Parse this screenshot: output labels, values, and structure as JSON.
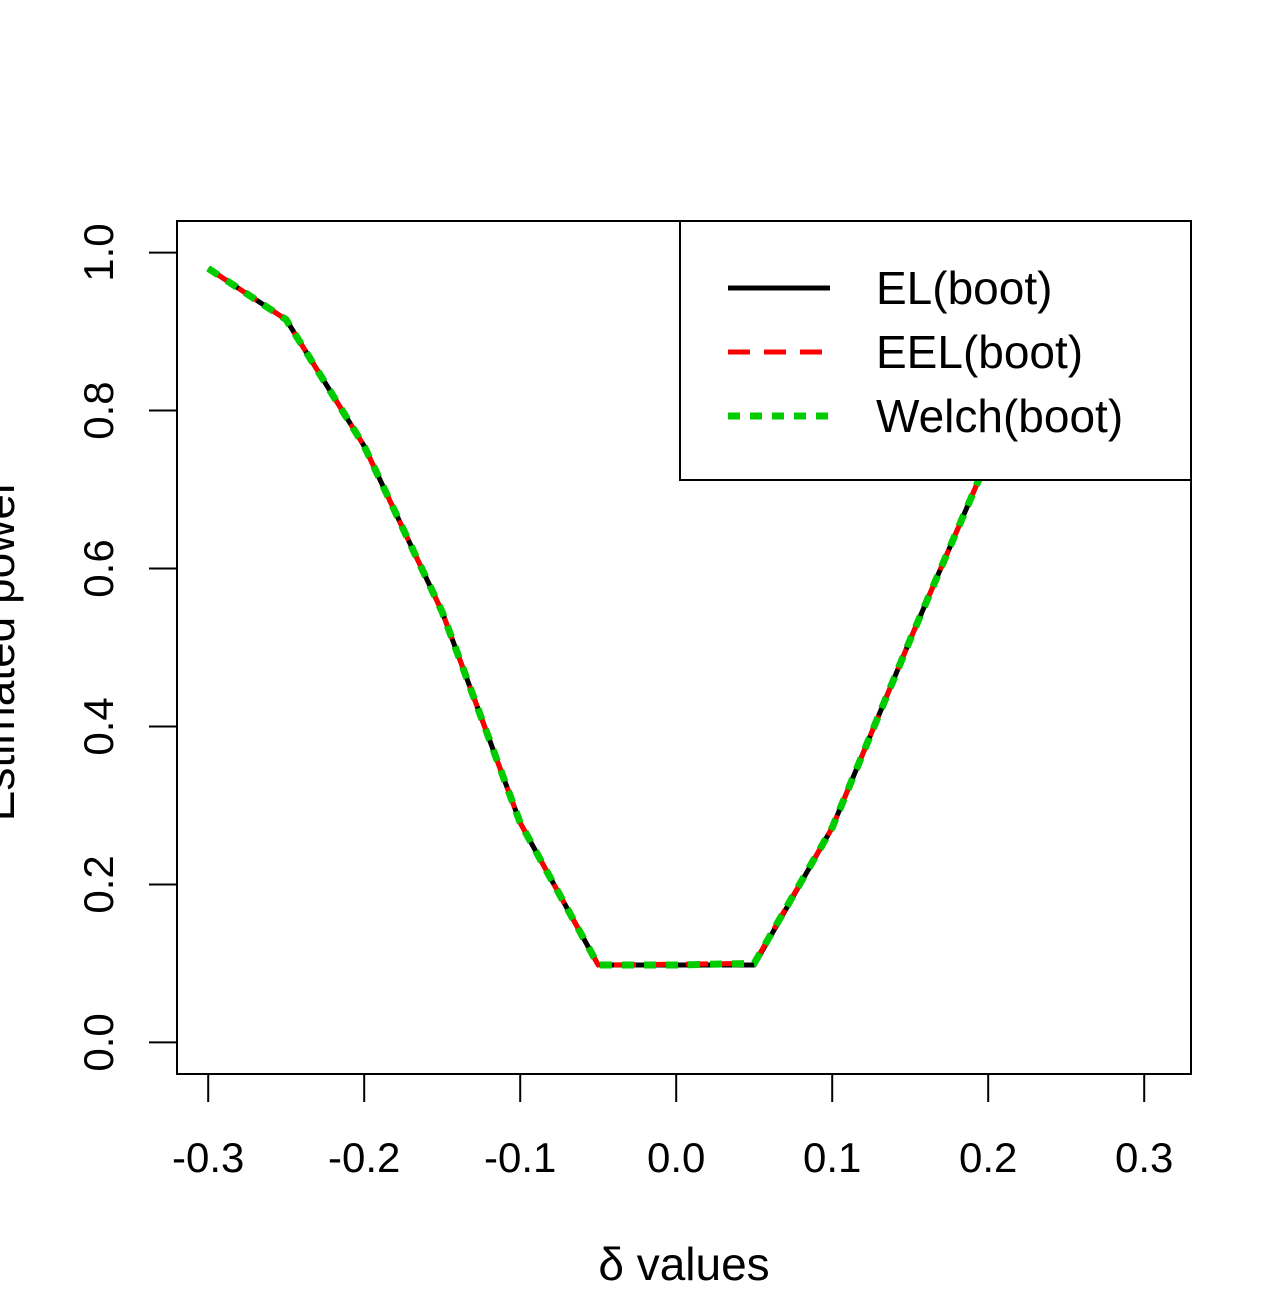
{
  "chart_data": {
    "type": "line",
    "title": "",
    "xlabel": "δ values",
    "ylabel": "Estimated power",
    "xlim": [
      -0.32,
      0.33
    ],
    "ylim": [
      -0.04,
      1.04
    ],
    "x_ticks": [
      -0.3,
      -0.2,
      -0.1,
      0.0,
      0.1,
      0.2,
      0.3
    ],
    "x_tick_labels": [
      "-0.3",
      "-0.2",
      "-0.1",
      "0.0",
      "0.1",
      "0.2",
      "0.3"
    ],
    "y_ticks": [
      0.0,
      0.2,
      0.4,
      0.6,
      0.8,
      1.0
    ],
    "y_tick_labels": [
      "0.0",
      "0.2",
      "0.4",
      "0.6",
      "0.8",
      "1.0"
    ],
    "grid": false,
    "legend_position": "top-right",
    "x": [
      -0.3,
      -0.25,
      -0.2,
      -0.15,
      -0.1,
      -0.05,
      0.0,
      0.05,
      0.1,
      0.15,
      0.2,
      0.25,
      0.3
    ],
    "series": [
      {
        "name": "EL(boot)",
        "color": "#000000",
        "dash": "solid",
        "values": [
          0.98,
          0.915,
          0.755,
          0.545,
          0.278,
          0.098,
          0.098,
          0.098,
          0.272,
          0.51,
          0.74,
          0.91,
          0.98
        ]
      },
      {
        "name": "EEL(boot)",
        "color": "#ff0000",
        "dash": "dashed",
        "values": [
          0.98,
          0.915,
          0.755,
          0.545,
          0.278,
          0.098,
          0.099,
          0.1,
          0.272,
          0.51,
          0.74,
          0.91,
          0.98
        ]
      },
      {
        "name": "Welch(boot)",
        "color": "#00cc00",
        "dash": "dotted",
        "values": [
          0.98,
          0.915,
          0.755,
          0.545,
          0.278,
          0.098,
          0.098,
          0.1,
          0.272,
          0.51,
          0.74,
          0.91,
          0.98
        ]
      }
    ]
  }
}
